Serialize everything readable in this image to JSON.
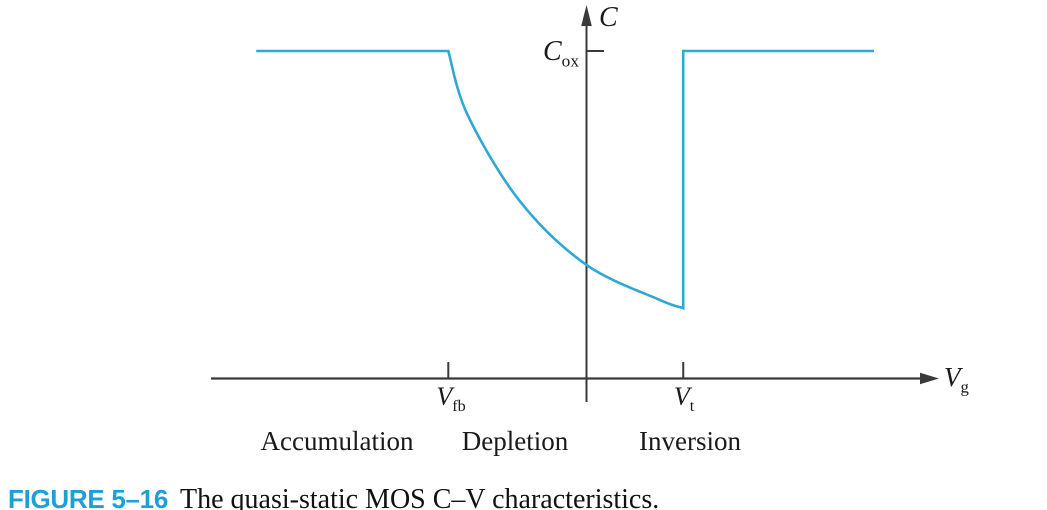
{
  "figure": {
    "caption_label": "FIGURE 5–16",
    "caption_text": "The quasi-static MOS C–V characteristics."
  },
  "axes": {
    "y_axis_label": {
      "main": "C",
      "sub": ""
    },
    "y_ticks": [
      {
        "id": "cox",
        "main": "C",
        "sub": "ox",
        "position_c_over_cox": 1.0
      }
    ],
    "x_axis_label": {
      "main": "V",
      "sub": "g"
    },
    "x_ticks": [
      {
        "id": "vfb",
        "main": "V",
        "sub": "fb",
        "position": -1.0
      },
      {
        "id": "vt",
        "main": "V",
        "sub": "t",
        "position": 0.7
      }
    ]
  },
  "regions": [
    "Accumulation",
    "Depletion",
    "Inversion"
  ],
  "colors": {
    "curve": "#30a7d4",
    "axis": "#3a3a3a",
    "caption_label": "#1d9fd8",
    "text": "#1a1a1a"
  },
  "chart_data": {
    "type": "line",
    "title": "",
    "xlabel": "Vg",
    "ylabel": "C",
    "grid": false,
    "legend": "none",
    "x_axis": {
      "numeric_labels": false,
      "unit": "arbitrary (Vfb = -1.0, Vt = 0.7)",
      "tick_labels": [
        "Vfb",
        "Vt"
      ],
      "tick_positions": [
        -1.0,
        0.7
      ],
      "range": [
        -2.7,
        2.55
      ]
    },
    "y_axis": {
      "numeric_labels": false,
      "unit": "C/Cox",
      "tick_labels": [
        "Cox"
      ],
      "tick_positions": [
        1.0
      ],
      "range": [
        0,
        1.15
      ]
    },
    "regions": [
      {
        "label": "Accumulation",
        "x_range": [
          -2.7,
          -1.0
        ]
      },
      {
        "label": "Depletion",
        "x_range": [
          -1.0,
          0.7
        ]
      },
      {
        "label": "Inversion",
        "x_range": [
          0.7,
          2.55
        ]
      }
    ],
    "series": [
      {
        "name": "quasi-static MOS C–V curve",
        "color": "#30a7d4",
        "path_segments": [
          {
            "type": "line",
            "points": [
              [
                -2.39,
                1.0
              ],
              [
                -1.0,
                1.0
              ]
            ]
          },
          {
            "type": "smooth",
            "points": [
              [
                -1.0,
                1.0
              ],
              [
                -0.86,
                0.805
              ],
              [
                -0.48,
                0.54
              ],
              [
                0.0,
                0.347
              ],
              [
                0.53,
                0.24
              ],
              [
                0.7,
                0.215
              ]
            ]
          },
          {
            "type": "line",
            "points": [
              [
                0.7,
                0.215
              ],
              [
                0.7,
                1.0
              ],
              [
                2.08,
                1.0
              ]
            ]
          }
        ],
        "min_c_over_cox": 0.215,
        "notes": "C equals Cox in accumulation (Vg < Vfb); decreases smoothly through depletion to about 0.22·Cox; jumps abruptly back up to Cox at Vt and stays at Cox in inversion."
      }
    ]
  }
}
